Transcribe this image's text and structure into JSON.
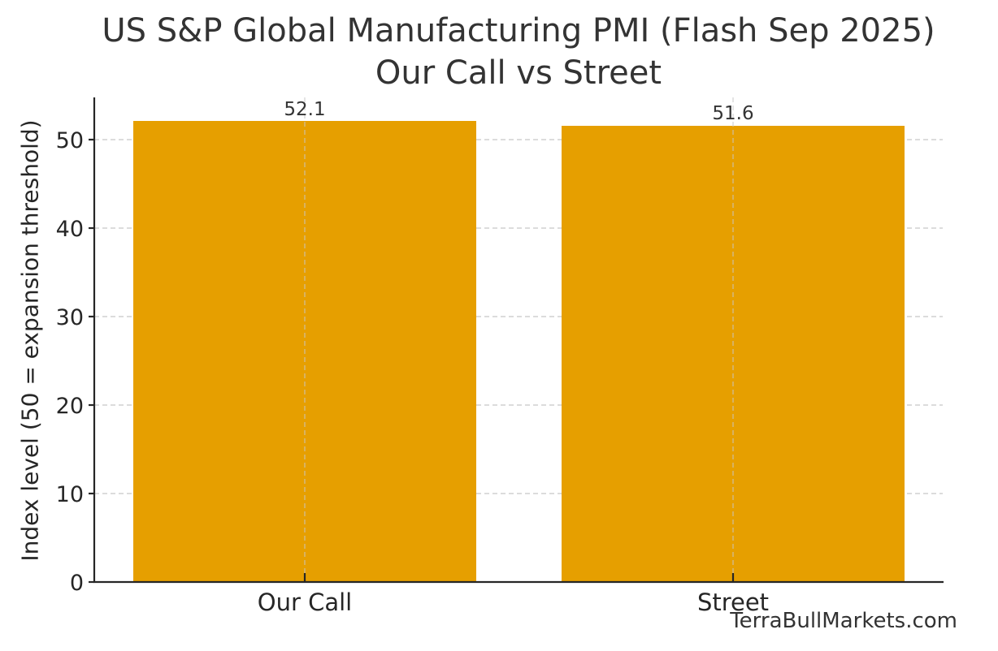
{
  "chart_data": {
    "type": "bar",
    "title": "US S&P Global Manufacturing PMI (Flash Sep 2025)",
    "subtitle": "Our Call vs Street",
    "categories": [
      "Our Call",
      "Street"
    ],
    "values": [
      52.1,
      51.6
    ],
    "value_labels": [
      "52.1",
      "51.6"
    ],
    "xlabel": "",
    "ylabel": "Index level (50 = expansion threshold)",
    "ylim": [
      0,
      54.7
    ],
    "yticks": [
      0,
      10,
      20,
      30,
      40,
      50
    ],
    "grid": true,
    "grid_style": "dashed",
    "legend": null,
    "bar_color": "#E69F00",
    "annotations": [
      "TerraBullMarkets.com"
    ]
  },
  "header": {
    "title_line1": "US S&P Global Manufacturing PMI (Flash Sep 2025)",
    "title_line2": "Our Call vs Street"
  },
  "axes": {
    "ylabel": "Index level (50 = expansion threshold)",
    "yticks": [
      "0",
      "10",
      "20",
      "30",
      "40",
      "50"
    ],
    "xticks": [
      "Our Call",
      "Street"
    ]
  },
  "bars": [
    {
      "label": "Our Call",
      "value": "52.1"
    },
    {
      "label": "Street",
      "value": "51.6"
    }
  ],
  "footer": {
    "watermark": "TerraBullMarkets.com"
  }
}
